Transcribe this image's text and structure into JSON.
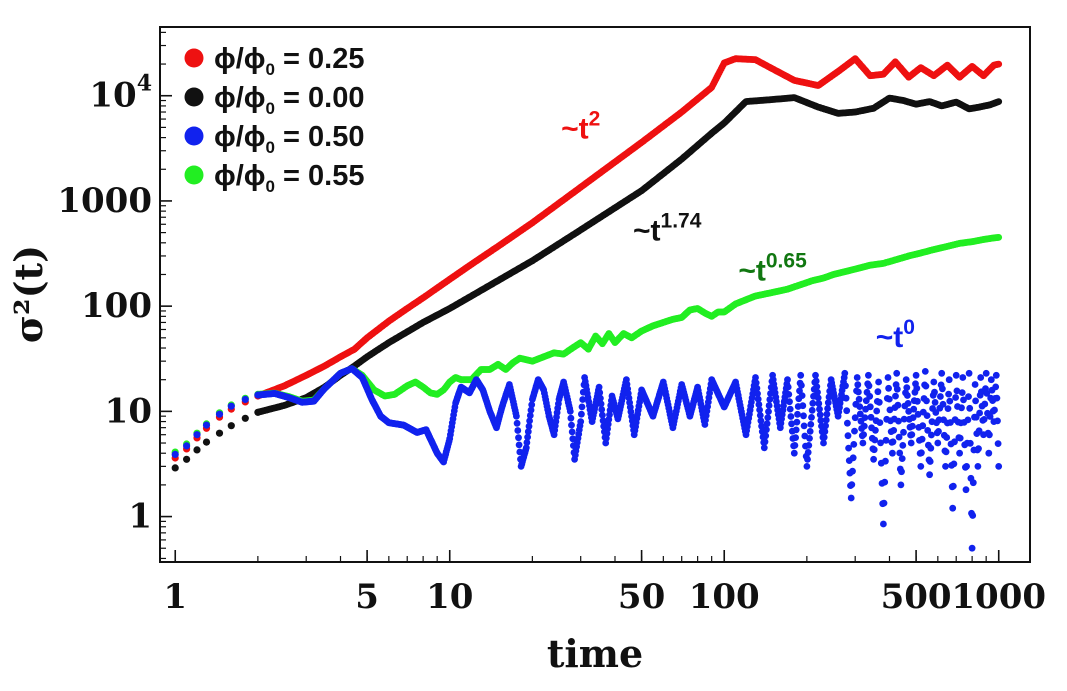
{
  "chart_data": {
    "type": "scatter",
    "title": "",
    "xlabel": "time",
    "ylabel": "σ²(t)",
    "x_scale": "log",
    "y_scale": "log",
    "xlim": [
      0.88,
      1300
    ],
    "ylim": [
      0.37,
      45000
    ],
    "x_ticks": [
      {
        "value": 1,
        "label": "1"
      },
      {
        "value": 5,
        "label": "5"
      },
      {
        "value": 10,
        "label": "10"
      },
      {
        "value": 50,
        "label": "50"
      },
      {
        "value": 100,
        "label": "100"
      },
      {
        "value": 500,
        "label": "500"
      },
      {
        "value": 1000,
        "label": "1000"
      }
    ],
    "y_ticks": [
      {
        "value": 1,
        "label": "1"
      },
      {
        "value": 10,
        "label": "10"
      },
      {
        "value": 100,
        "label": "100"
      },
      {
        "value": 1000,
        "label": "1000"
      },
      {
        "value": 10000,
        "label": "10",
        "sup": "4"
      }
    ],
    "grid": false,
    "legend_position": "top-left",
    "series": [
      {
        "name": "ϕ/ϕ₀ = 0.25",
        "legend": {
          "pre": "ϕ/ϕ",
          "sub": "0",
          "post": " = 0.25"
        },
        "color": "#ee1111",
        "points": [
          [
            1,
            3.6
          ],
          [
            1.1,
            4.4
          ],
          [
            1.2,
            5.6
          ],
          [
            1.3,
            6.9
          ],
          [
            1.45,
            8.8
          ],
          [
            1.6,
            10.5
          ],
          [
            1.8,
            12.3
          ],
          [
            2,
            14
          ],
          [
            2.5,
            17.5
          ],
          [
            3,
            22
          ],
          [
            3.5,
            27
          ],
          [
            4,
            33
          ],
          [
            4.5,
            39
          ],
          [
            5,
            50
          ],
          [
            6,
            72
          ],
          [
            7,
            95
          ],
          [
            8,
            120
          ],
          [
            10,
            180
          ],
          [
            12,
            250
          ],
          [
            15,
            370
          ],
          [
            20,
            620
          ],
          [
            30,
            1350
          ],
          [
            50,
            3600
          ],
          [
            70,
            7000
          ],
          [
            90,
            12000
          ],
          [
            100,
            20500
          ],
          [
            110,
            22500
          ],
          [
            130,
            22000
          ],
          [
            150,
            18000
          ],
          [
            180,
            14000
          ],
          [
            220,
            12500
          ],
          [
            260,
            17000
          ],
          [
            300,
            22500
          ],
          [
            340,
            15500
          ],
          [
            380,
            16000
          ],
          [
            420,
            21000
          ],
          [
            470,
            15000
          ],
          [
            520,
            18500
          ],
          [
            580,
            15500
          ],
          [
            650,
            19500
          ],
          [
            720,
            15000
          ],
          [
            800,
            19000
          ],
          [
            880,
            15500
          ],
          [
            960,
            19500
          ],
          [
            1000,
            20000
          ]
        ]
      },
      {
        "name": "ϕ/ϕ₀ = 0.00",
        "legend": {
          "pre": "ϕ/ϕ",
          "sub": "0",
          "post": " = 0.00"
        },
        "color": "#111111",
        "points": [
          [
            1,
            2.9
          ],
          [
            1.1,
            3.5
          ],
          [
            1.2,
            4.3
          ],
          [
            1.3,
            5.1
          ],
          [
            1.45,
            6.2
          ],
          [
            1.6,
            7.3
          ],
          [
            1.8,
            8.6
          ],
          [
            2,
            9.8
          ],
          [
            2.5,
            11.4
          ],
          [
            3,
            13.5
          ],
          [
            3.5,
            17
          ],
          [
            4,
            22
          ],
          [
            4.5,
            27
          ],
          [
            5,
            33
          ],
          [
            6,
            45
          ],
          [
            7,
            57
          ],
          [
            8,
            70
          ],
          [
            10,
            95
          ],
          [
            12,
            125
          ],
          [
            15,
            175
          ],
          [
            20,
            270
          ],
          [
            30,
            530
          ],
          [
            50,
            1250
          ],
          [
            70,
            2500
          ],
          [
            90,
            4400
          ],
          [
            100,
            5500
          ],
          [
            120,
            8800
          ],
          [
            150,
            9200
          ],
          [
            180,
            9600
          ],
          [
            220,
            7800
          ],
          [
            260,
            6800
          ],
          [
            300,
            7000
          ],
          [
            350,
            7600
          ],
          [
            400,
            9500
          ],
          [
            450,
            9000
          ],
          [
            500,
            8300
          ],
          [
            560,
            8800
          ],
          [
            620,
            8000
          ],
          [
            700,
            8700
          ],
          [
            780,
            7500
          ],
          [
            850,
            7800
          ],
          [
            930,
            8200
          ],
          [
            1000,
            8800
          ]
        ]
      },
      {
        "name": "ϕ/ϕ₀ = 0.50",
        "legend": {
          "pre": "ϕ/ϕ",
          "sub": "0",
          "post": " = 0.50"
        },
        "color": "#1122ee",
        "points": [
          [
            1,
            3.9
          ],
          [
            1.1,
            4.7
          ],
          [
            1.2,
            6
          ],
          [
            1.3,
            7.4
          ],
          [
            1.45,
            9.4
          ],
          [
            1.6,
            11.2
          ],
          [
            1.8,
            13
          ],
          [
            2,
            14.3
          ],
          [
            2.3,
            14.8
          ],
          [
            2.6,
            13.5
          ],
          [
            2.9,
            12.2
          ],
          [
            3.2,
            12.5
          ],
          [
            3.5,
            16.5
          ],
          [
            4,
            23
          ],
          [
            4.4,
            25.5
          ],
          [
            4.8,
            21
          ],
          [
            5.2,
            13
          ],
          [
            5.6,
            9
          ],
          [
            6,
            7.8
          ],
          [
            6.8,
            7.4
          ],
          [
            7.6,
            6.3
          ],
          [
            8.2,
            6.7
          ],
          [
            9,
            4
          ],
          [
            9.5,
            3.3
          ],
          [
            10,
            5.5
          ],
          [
            10.5,
            12
          ],
          [
            11,
            17
          ],
          [
            11.8,
            15
          ],
          [
            12.5,
            20
          ],
          [
            13.2,
            16
          ],
          [
            14,
            10
          ],
          [
            14.8,
            7
          ],
          [
            15.5,
            11
          ],
          [
            16.5,
            18
          ],
          [
            17.5,
            9
          ],
          [
            18.2,
            3
          ],
          [
            19,
            4.5
          ],
          [
            20,
            13
          ],
          [
            21,
            20
          ],
          [
            22,
            16
          ],
          [
            23,
            9
          ],
          [
            24,
            6
          ],
          [
            25,
            13
          ],
          [
            26,
            19
          ],
          [
            27.5,
            10
          ],
          [
            28.5,
            3.5
          ],
          [
            30,
            8
          ],
          [
            31,
            21
          ],
          [
            33,
            8
          ],
          [
            35,
            17
          ],
          [
            37,
            5
          ],
          [
            39,
            14
          ],
          [
            41,
            8.5
          ],
          [
            44,
            20
          ],
          [
            47,
            6
          ],
          [
            50,
            16
          ],
          [
            55,
            9
          ],
          [
            60,
            19
          ],
          [
            65,
            7
          ],
          [
            70,
            18
          ],
          [
            75,
            9
          ],
          [
            80,
            17
          ],
          [
            85,
            7.5
          ],
          [
            90,
            20
          ],
          [
            100,
            11
          ],
          [
            110,
            19
          ],
          [
            120,
            6
          ],
          [
            130,
            21
          ],
          [
            140,
            4.5
          ],
          [
            150,
            22
          ],
          [
            160,
            7
          ],
          [
            170,
            20
          ],
          [
            180,
            4
          ],
          [
            190,
            22
          ],
          [
            200,
            3
          ],
          [
            215,
            22
          ],
          [
            230,
            5
          ],
          [
            245,
            20
          ],
          [
            260,
            9
          ],
          [
            275,
            23
          ],
          [
            290,
            1.5
          ],
          [
            305,
            21
          ],
          [
            320,
            5
          ],
          [
            335,
            22
          ],
          [
            350,
            3.5
          ],
          [
            365,
            19
          ],
          [
            380,
            0.85
          ],
          [
            395,
            21
          ],
          [
            410,
            4
          ],
          [
            425,
            23
          ],
          [
            440,
            2
          ],
          [
            460,
            20
          ],
          [
            480,
            5
          ],
          [
            500,
            22
          ],
          [
            520,
            3
          ],
          [
            540,
            24
          ],
          [
            560,
            2.5
          ],
          [
            580,
            19
          ],
          [
            600,
            5
          ],
          [
            620,
            23
          ],
          [
            640,
            3
          ],
          [
            660,
            20
          ],
          [
            680,
            1.2
          ],
          [
            700,
            22
          ],
          [
            720,
            4
          ],
          [
            740,
            21
          ],
          [
            760,
            1.8
          ],
          [
            780,
            23
          ],
          [
            800,
            0.5
          ],
          [
            820,
            18
          ],
          [
            840,
            3
          ],
          [
            860,
            21
          ],
          [
            880,
            6
          ],
          [
            900,
            23
          ],
          [
            920,
            4
          ],
          [
            940,
            20
          ],
          [
            960,
            8
          ],
          [
            980,
            22
          ],
          [
            1000,
            3
          ]
        ]
      },
      {
        "name": "ϕ/ϕ₀ = 0.55",
        "legend": {
          "pre": "ϕ/ϕ",
          "sub": "0",
          "post": " = 0.55"
        },
        "color": "#22ee22",
        "points": [
          [
            1,
            4.1
          ],
          [
            1.1,
            4.9
          ],
          [
            1.2,
            6.2
          ],
          [
            1.3,
            7.6
          ],
          [
            1.45,
            9.7
          ],
          [
            1.6,
            11.5
          ],
          [
            1.8,
            13.3
          ],
          [
            2,
            14.5
          ],
          [
            2.3,
            14.9
          ],
          [
            2.6,
            13.8
          ],
          [
            2.9,
            12.5
          ],
          [
            3.2,
            12.8
          ],
          [
            3.5,
            16.5
          ],
          [
            4,
            23
          ],
          [
            4.4,
            25.5
          ],
          [
            4.8,
            22
          ],
          [
            5.3,
            16
          ],
          [
            5.8,
            14
          ],
          [
            6.3,
            14.5
          ],
          [
            7,
            17.5
          ],
          [
            7.5,
            19
          ],
          [
            8,
            17
          ],
          [
            8.5,
            15
          ],
          [
            9,
            14.5
          ],
          [
            9.5,
            16
          ],
          [
            10,
            19
          ],
          [
            10.5,
            21
          ],
          [
            11,
            20
          ],
          [
            12,
            20
          ],
          [
            13,
            25
          ],
          [
            14,
            25
          ],
          [
            15,
            28
          ],
          [
            16,
            25
          ],
          [
            17,
            29
          ],
          [
            18,
            32
          ],
          [
            20,
            30
          ],
          [
            22,
            33
          ],
          [
            24,
            36
          ],
          [
            26,
            35
          ],
          [
            28,
            40
          ],
          [
            30,
            45
          ],
          [
            32,
            39
          ],
          [
            34,
            52
          ],
          [
            36,
            44
          ],
          [
            38,
            55
          ],
          [
            40,
            45
          ],
          [
            43,
            55
          ],
          [
            46,
            50
          ],
          [
            50,
            58
          ],
          [
            55,
            65
          ],
          [
            60,
            70
          ],
          [
            65,
            75
          ],
          [
            70,
            78
          ],
          [
            75,
            92
          ],
          [
            80,
            95
          ],
          [
            85,
            86
          ],
          [
            90,
            80
          ],
          [
            95,
            88
          ],
          [
            100,
            88
          ],
          [
            110,
            105
          ],
          [
            120,
            115
          ],
          [
            130,
            125
          ],
          [
            140,
            130
          ],
          [
            150,
            135
          ],
          [
            170,
            145
          ],
          [
            190,
            160
          ],
          [
            210,
            175
          ],
          [
            230,
            185
          ],
          [
            250,
            200
          ],
          [
            280,
            215
          ],
          [
            310,
            230
          ],
          [
            340,
            245
          ],
          [
            380,
            255
          ],
          [
            420,
            275
          ],
          [
            470,
            300
          ],
          [
            520,
            320
          ],
          [
            580,
            345
          ],
          [
            650,
            370
          ],
          [
            720,
            395
          ],
          [
            800,
            410
          ],
          [
            880,
            430
          ],
          [
            960,
            445
          ],
          [
            1000,
            450
          ]
        ]
      }
    ],
    "annotations": [
      {
        "series": 0,
        "color": "#ee1111",
        "text": "~t",
        "sup": "2",
        "x": 30,
        "y": 3900
      },
      {
        "series": 1,
        "color": "#111111",
        "text": "~t",
        "sup": "1.74",
        "x": 62,
        "y": 420
      },
      {
        "series": 3,
        "color": "#117711",
        "text": "~t",
        "sup": "0.65",
        "x": 150,
        "y": 175
      },
      {
        "series": 2,
        "color": "#1122ee",
        "text": "~t",
        "sup": "0",
        "x": 420,
        "y": 41
      }
    ]
  }
}
